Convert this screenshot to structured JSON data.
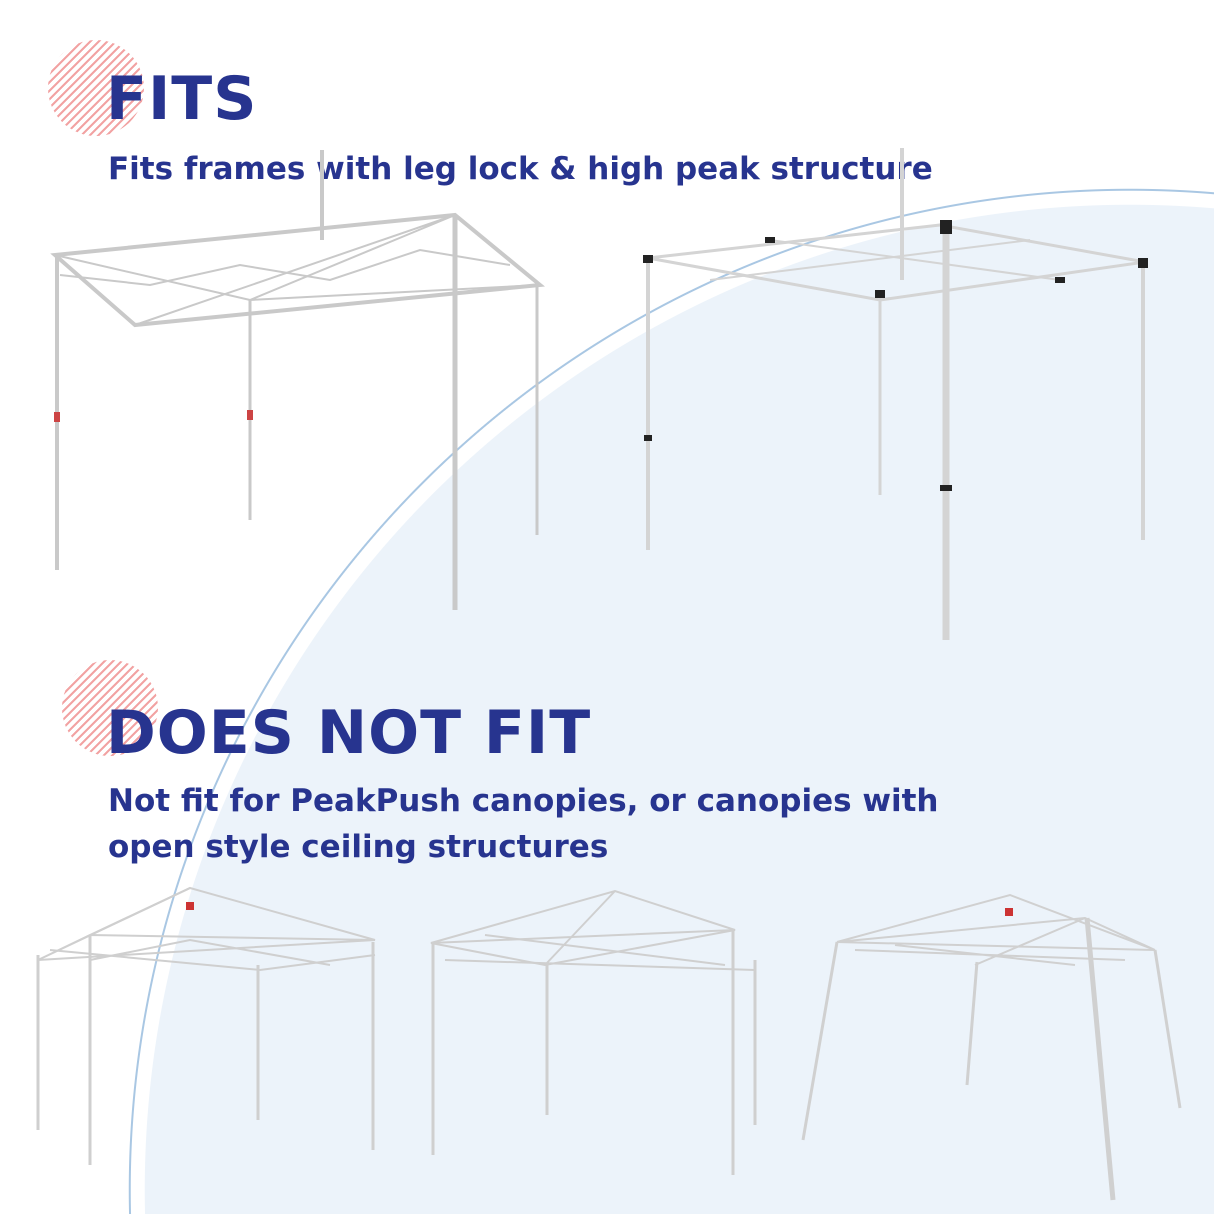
{
  "fits": {
    "heading": "FITS",
    "description": "Fits frames with leg lock & high peak structure"
  },
  "does_not_fit": {
    "heading": "DOES NOT FIT",
    "description_line1": "Not fit for PeakPush canopies, or canopies with",
    "description_line2": "open style ceiling structures"
  },
  "colors": {
    "heading": "#27348f",
    "badge_stripes": "#f2a3a3",
    "background_circle": "#eaf2fa"
  }
}
